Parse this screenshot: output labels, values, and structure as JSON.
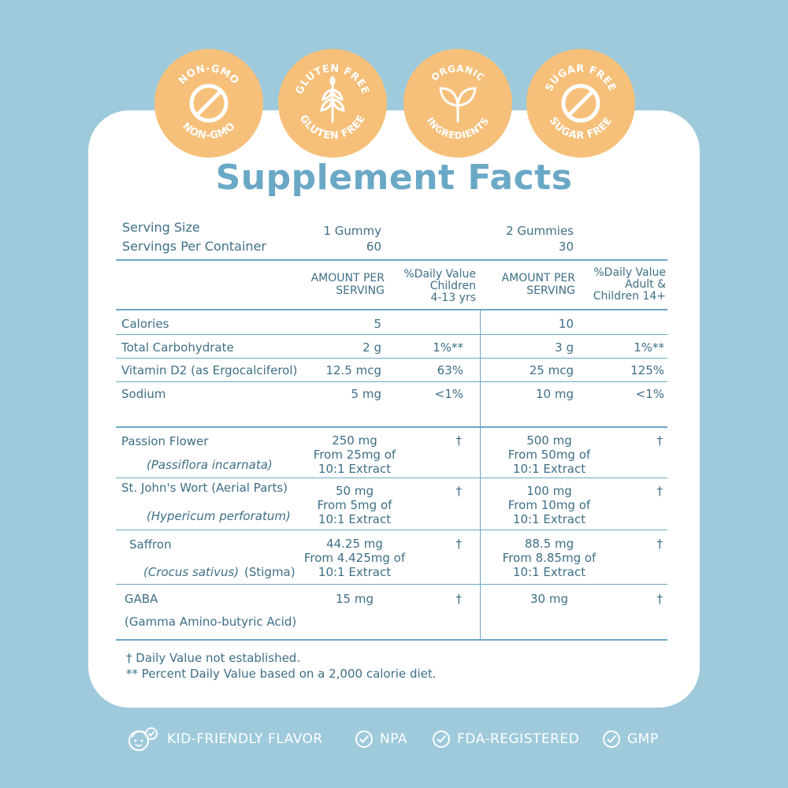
{
  "badges": [
    {
      "text": "NON-GMO",
      "icon": "no-sign-icon"
    },
    {
      "text": "GLUTEN FREE",
      "icon": "wheat-icon"
    },
    {
      "top": "ORGANIC",
      "bottom": "INGREDIENTS",
      "icon": "leaf-icon"
    },
    {
      "text": "SUGAR FREE",
      "icon": "no-sign-icon"
    }
  ],
  "title": "Supplement Facts",
  "serving": {
    "size_label": "Serving Size",
    "per_container_label": "Servings Per Container",
    "child_size": "1 Gummy",
    "child_count": "60",
    "adult_size": "2 Gummies",
    "adult_count": "30"
  },
  "headers": {
    "amount_1": "AMOUNT PER",
    "amount_2": "SERVING",
    "dv_child_1": "%Daily Value",
    "dv_child_2": "Children",
    "dv_child_3": "4-13 yrs",
    "dv_adult_1": "%Daily Value",
    "dv_adult_2": "Adult &",
    "dv_adult_3": "Children 14+"
  },
  "nutrients": [
    {
      "name": "Calories",
      "amt1": "5",
      "dv1": "",
      "amt2": "10",
      "dv2": ""
    },
    {
      "name": "Total Carbohydrate",
      "amt1": "2 g",
      "dv1": "1%**",
      "amt2": "3 g",
      "dv2": "1%**"
    },
    {
      "name": "Vitamin D2 (as Ergocalciferol)",
      "amt1": "12.5 mcg",
      "dv1": "63%",
      "amt2": "25 mcg",
      "dv2": "125%"
    },
    {
      "name": "Sodium",
      "amt1": "5 mg",
      "dv1": "<1%",
      "amt2": "10 mg",
      "dv2": "<1%"
    }
  ],
  "herbs": [
    {
      "name": "Passion Flower",
      "latin": "(Passiflora incarnata)",
      "latin_extra": "",
      "amt1": [
        "250 mg",
        "From 25mg of",
        "10:1 Extract"
      ],
      "dv1": "†",
      "amt2": [
        "500 mg",
        "From 50mg of",
        "10:1 Extract"
      ],
      "dv2": "†"
    },
    {
      "name": "St. John's Wort (Aerial Parts)",
      "latin": "(Hypericum perforatum)",
      "latin_extra": "",
      "amt1": [
        "50 mg",
        "From 5mg of",
        "10:1 Extract"
      ],
      "dv1": "†",
      "amt2": [
        "100 mg",
        "From 10mg of",
        "10:1 Extract"
      ],
      "dv2": "†"
    },
    {
      "name": "Saffron",
      "latin": "(Crocus sativus)",
      "latin_extra": "(Stigma)",
      "amt1": [
        "44.25 mg",
        "From 4.425mg of",
        "10:1 Extract"
      ],
      "dv1": "†",
      "amt2": [
        "88.5 mg",
        "From 8.85mg of",
        "10:1 Extract"
      ],
      "dv2": "†"
    },
    {
      "name": "GABA",
      "latin": "(Gamma Amino-butyric Acid)",
      "latin_extra": "",
      "amt1": [
        "15 mg"
      ],
      "dv1": "†",
      "amt2": [
        "30 mg"
      ],
      "dv2": "†"
    }
  ],
  "notes": [
    "† Daily Value  not established.",
    "** Percent Daily Value based on a 2,000 calorie diet."
  ],
  "footer": [
    {
      "label": "KID-FRIENDLY FLAVOR",
      "icon": "kid-face-check-icon"
    },
    {
      "label": "NPA",
      "icon": "check-circle-icon"
    },
    {
      "label": "FDA-REGISTERED",
      "icon": "check-circle-icon"
    },
    {
      "label": "GMP",
      "icon": "check-circle-icon"
    }
  ],
  "colors": {
    "background": "#9ecadb",
    "badge": "#f6c07a",
    "title": "#6aa8c6",
    "text": "#3f6f86",
    "lines": "#6aa8c6"
  }
}
